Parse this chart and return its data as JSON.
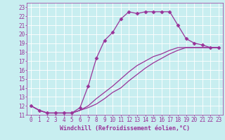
{
  "xlabel": "Windchill (Refroidissement éolien,°C)",
  "bg_color": "#c8eef0",
  "line_color": "#993399",
  "grid_color": "#ffffff",
  "xlim": [
    -0.5,
    23.5
  ],
  "ylim": [
    11,
    23.5
  ],
  "xticks": [
    0,
    1,
    2,
    3,
    4,
    5,
    6,
    7,
    8,
    9,
    10,
    11,
    12,
    13,
    14,
    15,
    16,
    17,
    18,
    19,
    20,
    21,
    22,
    23
  ],
  "yticks": [
    11,
    12,
    13,
    14,
    15,
    16,
    17,
    18,
    19,
    20,
    21,
    22,
    23
  ],
  "line1_x": [
    0,
    1,
    2,
    3,
    4,
    5,
    6,
    7,
    8,
    9,
    10,
    11,
    12,
    13,
    14,
    15,
    16,
    17,
    18,
    19,
    20,
    21,
    22,
    23
  ],
  "line1_y": [
    12,
    11.5,
    11.2,
    11.2,
    11.2,
    11.2,
    11.8,
    14.2,
    17.3,
    19.3,
    20.2,
    21.7,
    22.5,
    22.3,
    22.5,
    22.5,
    22.5,
    22.5,
    21.0,
    19.5,
    19.0,
    18.8,
    18.5,
    18.5
  ],
  "line2_x": [
    0,
    1,
    2,
    3,
    4,
    5,
    6,
    7,
    8,
    9,
    10,
    11,
    12,
    13,
    14,
    15,
    16,
    17,
    18,
    19,
    20,
    21,
    22,
    23
  ],
  "line2_y": [
    12,
    11.5,
    11.2,
    11.2,
    11.2,
    11.2,
    11.5,
    12.0,
    12.8,
    13.5,
    14.2,
    15.0,
    15.8,
    16.5,
    17.0,
    17.5,
    17.8,
    18.2,
    18.5,
    18.5,
    18.5,
    18.5,
    18.5,
    18.5
  ],
  "line3_x": [
    0,
    1,
    2,
    3,
    4,
    5,
    6,
    7,
    8,
    9,
    10,
    11,
    12,
    13,
    14,
    15,
    16,
    17,
    18,
    19,
    20,
    21,
    22,
    23
  ],
  "line3_y": [
    12,
    11.5,
    11.2,
    11.2,
    11.2,
    11.2,
    11.5,
    11.8,
    12.2,
    12.8,
    13.5,
    14.0,
    14.8,
    15.5,
    16.2,
    16.8,
    17.3,
    17.8,
    18.2,
    18.5,
    18.5,
    18.5,
    18.5,
    18.5
  ],
  "marker": "D",
  "marker_size": 2.5,
  "linewidth": 0.9,
  "xlabel_fontsize": 6,
  "tick_fontsize": 5.5
}
